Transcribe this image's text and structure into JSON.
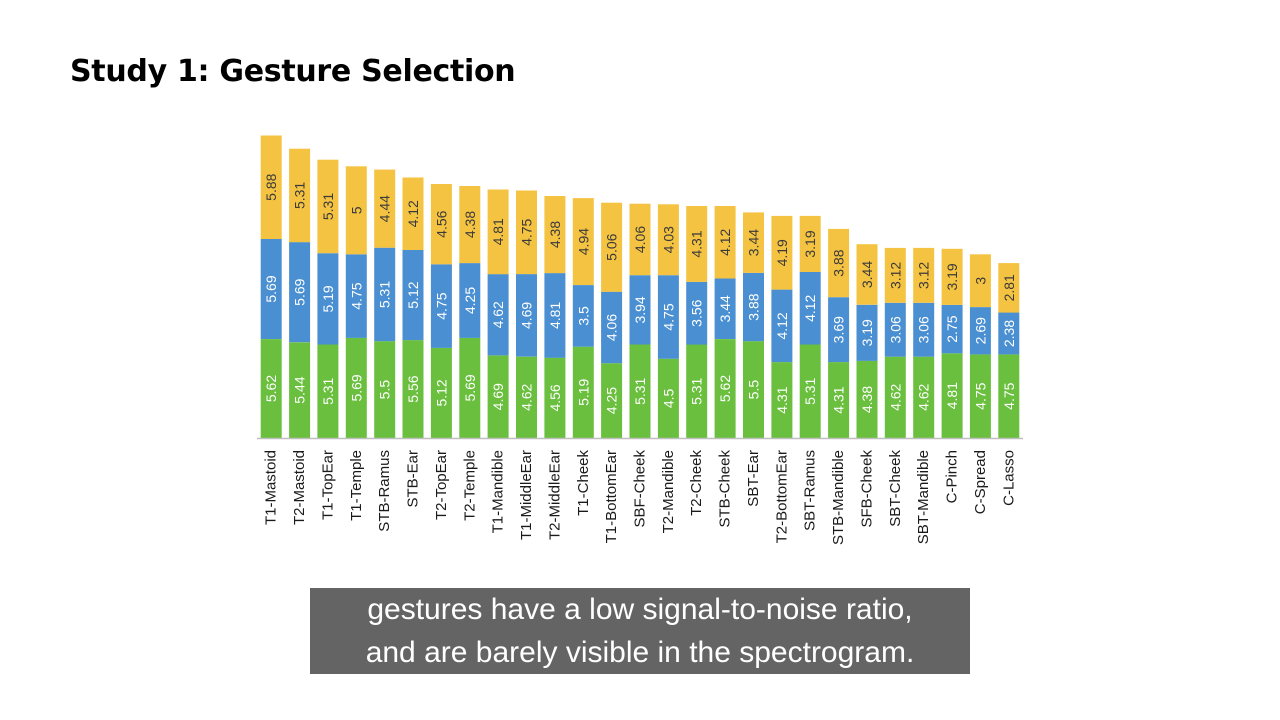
{
  "slide": {
    "title": "Study 1: Gesture Selection"
  },
  "caption": {
    "line1": "gestures have a low signal-to-noise ratio,",
    "line2": "and are barely visible in the spectrogram."
  },
  "colors": {
    "green": "#6abf3e",
    "blue": "#4a8fd1",
    "yellow": "#f5c342",
    "axis": "#bfbfbf",
    "label": "#1a1a1a"
  },
  "chart_data": {
    "type": "bar",
    "stacked": true,
    "categories": [
      "T1-Mastoid",
      "T2-Mastoid",
      "T1-TopEar",
      "T1-Temple",
      "STB-Ramus",
      "STB-Ear",
      "T2-TopEar",
      "T2-Temple",
      "T1-Mandible",
      "T1-MiddleEar",
      "T2-MiddleEar",
      "T1-Cheek",
      "T1-BottomEar",
      "SBF-Cheek",
      "T2-Mandible",
      "T2-Cheek",
      "STB-Cheek",
      "SBT-Ear",
      "T2-BottomEar",
      "SBT-Ramus",
      "STB-Mandible",
      "SFB-Cheek",
      "SBT-Cheek",
      "SBT-Mandible",
      "C-Pinch",
      "C-Spread",
      "C-Lasso"
    ],
    "series": [
      {
        "name": "green",
        "color": "#6abf3e",
        "labels": [
          "5.62",
          "5.44",
          "5.31",
          "5.69",
          "5.5",
          "5.56",
          "5.12",
          "5.69",
          "4.69",
          "4.62",
          "4.56",
          "5.19",
          "4.25",
          "5.31",
          "4.5",
          "5.31",
          "5.62",
          "5.5",
          "4.31",
          "5.31",
          "4.31",
          "4.38",
          "4.62",
          "4.62",
          "4.81",
          "4.75",
          "4.75"
        ],
        "values": [
          5.62,
          5.44,
          5.31,
          5.69,
          5.5,
          5.56,
          5.12,
          5.69,
          4.69,
          4.62,
          4.56,
          5.19,
          4.25,
          5.31,
          4.5,
          5.31,
          5.62,
          5.5,
          4.31,
          5.31,
          4.31,
          4.38,
          4.62,
          4.62,
          4.81,
          4.75,
          4.75
        ]
      },
      {
        "name": "blue",
        "color": "#4a8fd1",
        "labels": [
          "5.69",
          "5.69",
          "5.19",
          "4.75",
          "5.31",
          "5.12",
          "4.75",
          "4.25",
          "4.62",
          "4.69",
          "4.81",
          "3.5",
          "4.06",
          "3.94",
          "4.75",
          "3.56",
          "3.44",
          "3.88",
          "4.12",
          "4.12",
          "3.69",
          "3.19",
          "3.06",
          "3.06",
          "2.75",
          "2.69",
          "2.38"
        ],
        "values": [
          5.69,
          5.69,
          5.19,
          4.75,
          5.31,
          5.12,
          4.75,
          4.25,
          4.62,
          4.69,
          4.81,
          3.5,
          4.06,
          3.94,
          4.75,
          3.56,
          3.44,
          3.88,
          4.12,
          4.12,
          3.69,
          3.19,
          3.06,
          3.06,
          2.75,
          2.69,
          2.38
        ]
      },
      {
        "name": "yellow",
        "color": "#f5c342",
        "labels": [
          "5.88",
          "5.31",
          "5.31",
          "5",
          "4.44",
          "4.12",
          "4.56",
          "4.38",
          "4.81",
          "4.75",
          "4.38",
          "4.94",
          "5.06",
          "4.06",
          "4.03",
          "4.31",
          "4.12",
          "3.44",
          "4.19",
          "3.19",
          "3.88",
          "3.44",
          "3.12",
          "3.12",
          "3.19",
          "3",
          "2.81"
        ],
        "values": [
          5.88,
          5.31,
          5.31,
          5,
          4.44,
          4.12,
          4.56,
          4.38,
          4.81,
          4.75,
          4.38,
          4.94,
          5.06,
          4.06,
          4.03,
          4.31,
          4.12,
          3.44,
          4.19,
          3.19,
          3.88,
          3.44,
          3.12,
          3.12,
          3.19,
          3,
          2.81
        ]
      }
    ],
    "ylim": [
      0,
      17.5
    ],
    "title": "",
    "xlabel": "",
    "ylabel": ""
  }
}
